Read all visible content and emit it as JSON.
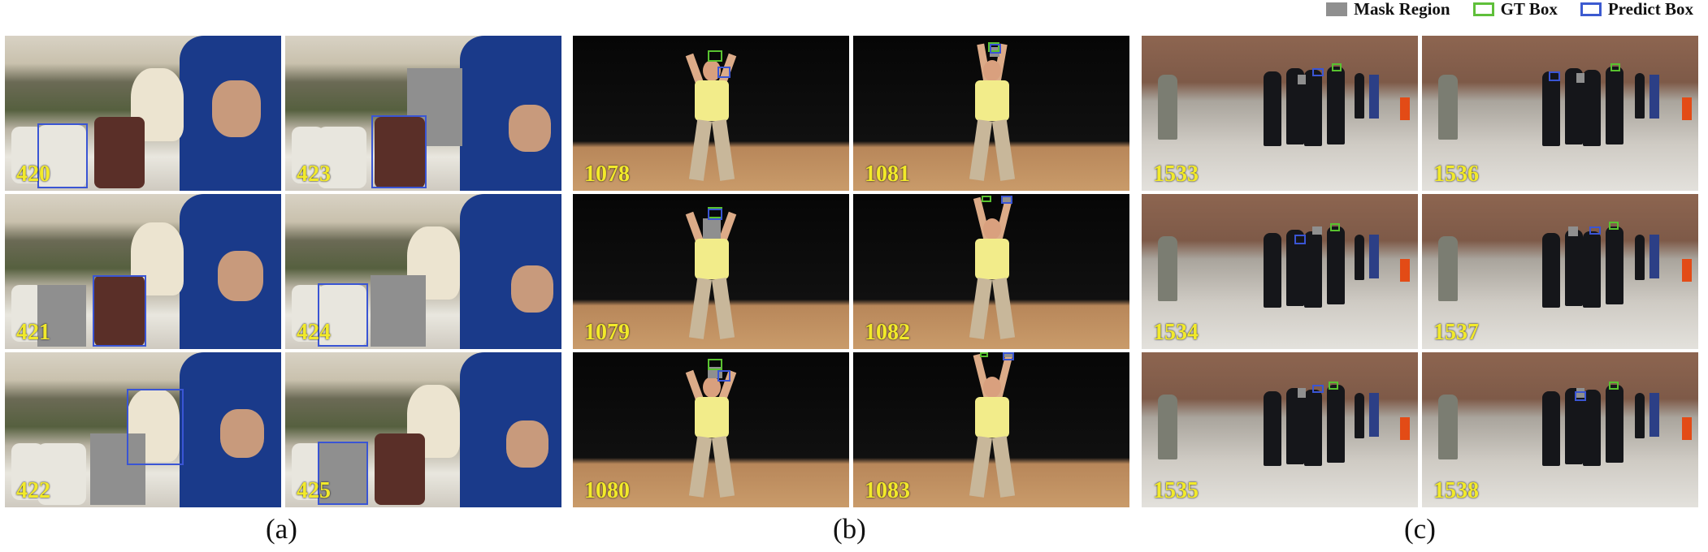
{
  "legend": {
    "mask_label": "Mask Region",
    "gt_label": "GT Box",
    "pred_label": "Predict Box",
    "colors": {
      "mask": "#8f8f8f",
      "gt": "#5fbf3a",
      "pred": "#3c5ad0"
    }
  },
  "panels": {
    "a": {
      "caption": "(a)",
      "frames": [
        "420",
        "421",
        "422",
        "423",
        "424",
        "425"
      ]
    },
    "b": {
      "caption": "(b)",
      "frames": [
        "1078",
        "1079",
        "1080",
        "1081",
        "1082",
        "1083"
      ]
    },
    "c": {
      "caption": "(c)",
      "frames": [
        "1533",
        "1534",
        "1535",
        "1536",
        "1537",
        "1538"
      ]
    }
  }
}
